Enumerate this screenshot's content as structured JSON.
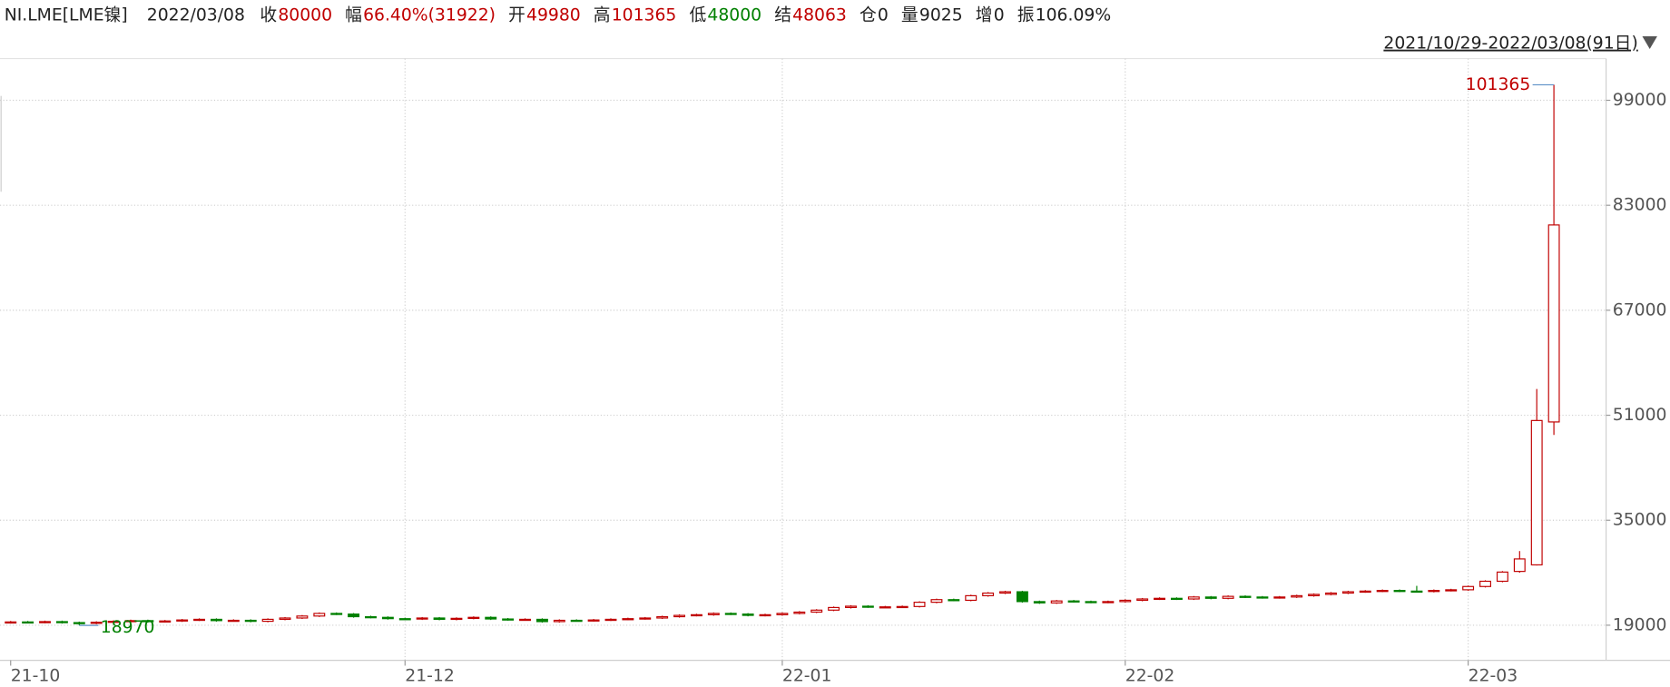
{
  "quote": {
    "symbol": "NI.LME[LME镍]",
    "date": "2022/03/08",
    "items": [
      {
        "label": "收",
        "value": "80000",
        "color": "#c00000"
      },
      {
        "label": "幅",
        "value": "66.40%(31922)",
        "color": "#c00000"
      },
      {
        "label": "开",
        "value": "49980",
        "color": "#c00000"
      },
      {
        "label": "高",
        "value": "101365",
        "color": "#c00000"
      },
      {
        "label": "低",
        "value": "48000",
        "color": "#008000"
      },
      {
        "label": "结",
        "value": "48063",
        "color": "#c00000"
      },
      {
        "label": "仓",
        "value": "0",
        "color": "#222222"
      },
      {
        "label": "量",
        "value": "9025",
        "color": "#222222"
      },
      {
        "label": "增",
        "value": "0",
        "color": "#222222"
      },
      {
        "label": "振",
        "value": "106.09%",
        "color": "#222222"
      }
    ],
    "range": "2021/10/29-2022/03/08(91日)"
  },
  "chart_data": {
    "type": "candlestick",
    "categories": [
      "21-10",
      null,
      null,
      null,
      null,
      null,
      null,
      null,
      null,
      null,
      null,
      null,
      null,
      null,
      null,
      null,
      null,
      null,
      null,
      null,
      null,
      null,
      null,
      "21-12",
      null,
      null,
      null,
      null,
      null,
      null,
      null,
      null,
      null,
      null,
      null,
      null,
      null,
      null,
      null,
      null,
      null,
      null,
      null,
      null,
      null,
      "22-01",
      null,
      null,
      null,
      null,
      null,
      null,
      null,
      null,
      null,
      null,
      null,
      null,
      null,
      null,
      null,
      null,
      null,
      null,
      null,
      "22-02",
      null,
      null,
      null,
      null,
      null,
      null,
      null,
      null,
      null,
      null,
      null,
      null,
      null,
      null,
      null,
      null,
      null,
      null,
      null,
      "22-03",
      null,
      null,
      null,
      null,
      null
    ],
    "open": [
      19400,
      19500,
      19450,
      19550,
      19400,
      19300,
      19450,
      19600,
      19700,
      19550,
      19650,
      19800,
      19900,
      19700,
      19750,
      19600,
      19900,
      20100,
      20400,
      20800,
      20700,
      20300,
      20200,
      20000,
      19950,
      20100,
      19900,
      20050,
      20200,
      19950,
      19850,
      19900,
      19550,
      19750,
      19700,
      19800,
      19900,
      20000,
      20100,
      20300,
      20500,
      20600,
      20800,
      20700,
      20500,
      20600,
      20800,
      21000,
      21300,
      21700,
      21900,
      21800,
      21800,
      21850,
      22500,
      22900,
      22800,
      23500,
      23900,
      24100,
      22600,
      22400,
      22700,
      22600,
      22500,
      22600,
      22800,
      23000,
      23100,
      23000,
      23300,
      23100,
      23400,
      23300,
      23200,
      23300,
      23500,
      23700,
      23900,
      24100,
      24200,
      24300,
      24200,
      24150,
      24300,
      24400,
      24900,
      25700,
      27200,
      28200,
      49980
    ],
    "high": [
      19650,
      19650,
      19700,
      19700,
      19550,
      19600,
      19750,
      19850,
      19850,
      19800,
      19950,
      20050,
      20050,
      19900,
      19900,
      20050,
      20250,
      20550,
      20950,
      20950,
      20850,
      20450,
      20350,
      20150,
      20250,
      20250,
      20200,
      20350,
      20350,
      20100,
      20050,
      20050,
      19900,
      19900,
      19950,
      20050,
      20150,
      20250,
      20450,
      20650,
      20750,
      20950,
      20950,
      20850,
      20750,
      20950,
      21150,
      21450,
      21850,
      22050,
      22050,
      21950,
      22000,
      22650,
      23050,
      23050,
      23650,
      24050,
      24250,
      24250,
      22750,
      22850,
      22850,
      22750,
      22750,
      22950,
      23150,
      23250,
      23250,
      23450,
      23450,
      23550,
      23550,
      23450,
      23450,
      23650,
      23850,
      24050,
      24250,
      24350,
      24450,
      24450,
      25000,
      24450,
      24550,
      25050,
      25850,
      27250,
      30300,
      55000,
      101365
    ],
    "low": [
      19250,
      19300,
      19300,
      19250,
      18970,
      19150,
      19300,
      19450,
      19400,
      19400,
      19500,
      19650,
      19550,
      19550,
      19450,
      19450,
      19750,
      19950,
      20250,
      20550,
      20150,
      20050,
      19850,
      19800,
      19800,
      19750,
      19750,
      19900,
      19800,
      19700,
      19700,
      19400,
      19400,
      19550,
      19550,
      19650,
      19750,
      19850,
      19950,
      20150,
      20350,
      20450,
      20550,
      20350,
      20350,
      20450,
      20650,
      20850,
      21150,
      21550,
      21650,
      21650,
      21650,
      21700,
      22350,
      22650,
      22650,
      23350,
      23750,
      22450,
      22250,
      22250,
      22450,
      22350,
      22350,
      22450,
      22650,
      22850,
      22850,
      22850,
      22950,
      22950,
      23150,
      23050,
      23050,
      23150,
      23350,
      23550,
      23750,
      23950,
      24050,
      24050,
      24000,
      24000,
      24150,
      24250,
      24750,
      25550,
      27000,
      28100,
      48000
    ],
    "close": [
      19500,
      19450,
      19550,
      19400,
      19300,
      19450,
      19600,
      19700,
      19550,
      19650,
      19800,
      19900,
      19700,
      19750,
      19600,
      19900,
      20100,
      20400,
      20800,
      20700,
      20300,
      20200,
      20000,
      19950,
      20100,
      19900,
      20050,
      20200,
      19950,
      19850,
      19900,
      19550,
      19750,
      19700,
      19800,
      19900,
      20000,
      20100,
      20300,
      20500,
      20600,
      20800,
      20700,
      20500,
      20600,
      20800,
      21000,
      21300,
      21700,
      21900,
      21800,
      21800,
      21850,
      22500,
      22900,
      22800,
      23500,
      23900,
      24100,
      22600,
      22400,
      22700,
      22600,
      22500,
      22600,
      22800,
      23000,
      23100,
      23000,
      23300,
      23100,
      23400,
      23300,
      23200,
      23300,
      23500,
      23700,
      23900,
      24100,
      24200,
      24300,
      24200,
      24150,
      24300,
      24400,
      24900,
      25700,
      27100,
      29100,
      50200,
      80000
    ],
    "up_color": "#c00000",
    "down_color": "#008000",
    "ylim": [
      13650,
      105350
    ],
    "yticks": [
      19000,
      35000,
      51000,
      67000,
      83000,
      99000
    ],
    "grid": true
  }
}
